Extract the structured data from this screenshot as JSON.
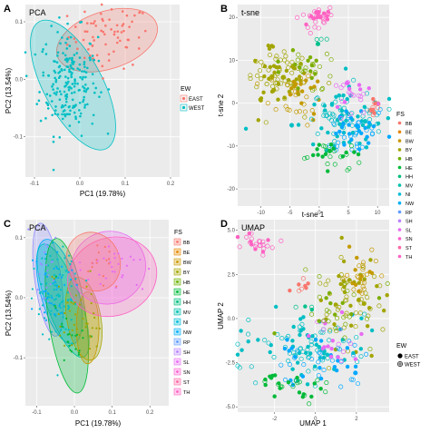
{
  "figure_title": "",
  "chart_data": [
    {
      "panel": "A",
      "type": "scatter",
      "title": "PCA",
      "xlabel": "PC1 (19.78%)",
      "ylabel": "PC2 (13.54%)",
      "xlim": [
        -0.12,
        0.22
      ],
      "ylim": [
        -0.17,
        0.13
      ],
      "xticks": [
        -0.1,
        0.0,
        0.1,
        0.2
      ],
      "yticks": [
        -0.1,
        0.0,
        0.1
      ],
      "xtick_labels": [
        "-0.1",
        "0.0",
        "0.1",
        "0.2"
      ],
      "ytick_labels": [
        "-0.1",
        "0.0",
        "0.1"
      ],
      "grid": true,
      "background": "#ebebeb",
      "legend": {
        "title": "EW",
        "position": "right",
        "entries": [
          "EAST",
          "WEST"
        ]
      },
      "series": [
        {
          "name": "EAST",
          "color": "#f8766d",
          "cluster": {
            "cx": 0.065,
            "cy": 0.075,
            "sx": 0.045,
            "sy": 0.028,
            "n": 70
          },
          "ellipse": {
            "cx": 0.06,
            "cy": 0.068,
            "rx": 0.115,
            "ry": 0.05,
            "angle": -18
          }
        },
        {
          "name": "WEST",
          "color": "#00bfc4",
          "cluster": {
            "cx": -0.025,
            "cy": -0.005,
            "sx": 0.032,
            "sy": 0.045,
            "n": 210
          },
          "ellipse": {
            "cx": -0.015,
            "cy": -0.01,
            "rx": 0.065,
            "ry": 0.125,
            "angle": -28
          }
        }
      ]
    },
    {
      "panel": "B",
      "type": "scatter",
      "title": "t-sne",
      "xlabel": "t-sne 1",
      "ylabel": "t-sne 2",
      "xlim": [
        -14,
        12
      ],
      "ylim": [
        -24,
        23
      ],
      "xticks": [
        -10,
        -5,
        0,
        5,
        10
      ],
      "yticks": [
        -20,
        -10,
        0,
        10,
        20
      ],
      "xtick_labels": [
        "-10",
        "-5",
        "0",
        "5",
        "10"
      ],
      "ytick_labels": [
        "-20",
        "-10",
        "0",
        "10",
        "20"
      ],
      "grid": true,
      "background": "#ebebeb",
      "legend": {
        "title": "FS",
        "position": "right",
        "entries": [
          "BB",
          "BE",
          "BW",
          "BY",
          "HB",
          "HE",
          "HH",
          "MV",
          "NI",
          "NW",
          "RP",
          "SH",
          "SL",
          "SN",
          "ST",
          "TH"
        ]
      },
      "clusters": [
        {
          "color": "#ff61c3",
          "cx": -1.0,
          "cy": 20.0,
          "sx": 1.3,
          "sy": 1.4,
          "n": 35
        },
        {
          "color": "#a3a500",
          "cx": -7.5,
          "cy": 6.0,
          "sx": 2.8,
          "sy": 3.5,
          "n": 90
        },
        {
          "color": "#c49a00",
          "cx": -3.5,
          "cy": 1.5,
          "sx": 2.5,
          "sy": 3.0,
          "n": 40
        },
        {
          "color": "#00bfc4",
          "cx": 3.5,
          "cy": -3.0,
          "sx": 4.0,
          "sy": 3.5,
          "n": 100
        },
        {
          "color": "#00a9ff",
          "cx": 6.0,
          "cy": -7.0,
          "sx": 2.5,
          "sy": 3.0,
          "n": 50
        },
        {
          "color": "#00ba38",
          "cx": 1.5,
          "cy": -11.5,
          "sx": 2.5,
          "sy": 1.5,
          "n": 30
        },
        {
          "color": "#e76bf3",
          "cx": 6.0,
          "cy": 2.5,
          "sx": 2.0,
          "sy": 1.8,
          "n": 25
        },
        {
          "color": "#f8766d",
          "cx": 9.5,
          "cy": -1.5,
          "sx": 0.8,
          "sy": 1.2,
          "n": 12
        },
        {
          "color": "#7cae00",
          "cx": -2.5,
          "cy": 8.0,
          "sx": 2.5,
          "sy": 2.5,
          "n": 30
        },
        {
          "color": "#00c08b",
          "cx": 0.5,
          "cy": 14.5,
          "sx": 0.6,
          "sy": 0.5,
          "n": 5
        }
      ]
    },
    {
      "panel": "C",
      "type": "scatter",
      "title": "PCA",
      "xlabel": "PC1 (19.78%)",
      "ylabel": "PC2 (13.54%)",
      "xlim": [
        -0.13,
        0.25
      ],
      "ylim": [
        -0.18,
        0.13
      ],
      "xticks": [
        -0.1,
        0.0,
        0.1,
        0.2
      ],
      "yticks": [
        -0.1,
        0.0,
        0.1
      ],
      "xtick_labels": [
        "-0.1",
        "0.0",
        "0.1",
        "0.2"
      ],
      "ytick_labels": [
        "-0.1",
        "0.0",
        "0.1"
      ],
      "grid": true,
      "background": "#ebebeb",
      "legend": {
        "title": "FS",
        "position": "right",
        "entries": [
          "BB",
          "BE",
          "BW",
          "BY",
          "HB",
          "HE",
          "HH",
          "MV",
          "NI",
          "NW",
          "RP",
          "SH",
          "SL",
          "SN",
          "ST",
          "TH"
        ]
      },
      "ellipses": [
        {
          "color": "#9590ff",
          "cx": -0.07,
          "cy": 0.03,
          "rx": 0.035,
          "ry": 0.095,
          "angle": -8
        },
        {
          "color": "#00a9ff",
          "cx": -0.04,
          "cy": 0.01,
          "rx": 0.05,
          "ry": 0.09,
          "angle": -15
        },
        {
          "color": "#00bfc4",
          "cx": -0.03,
          "cy": -0.005,
          "rx": 0.045,
          "ry": 0.1,
          "angle": -20
        },
        {
          "color": "#00ba38",
          "cx": -0.02,
          "cy": -0.03,
          "rx": 0.05,
          "ry": 0.13,
          "angle": -8
        },
        {
          "color": "#a3a500",
          "cx": 0.025,
          "cy": -0.035,
          "rx": 0.045,
          "ry": 0.07,
          "angle": -10
        },
        {
          "color": "#c49a00",
          "cx": 0.035,
          "cy": -0.05,
          "rx": 0.03,
          "ry": 0.06,
          "angle": 0
        },
        {
          "color": "#e76bf3",
          "cx": 0.09,
          "cy": 0.05,
          "rx": 0.1,
          "ry": 0.06,
          "angle": -30
        },
        {
          "color": "#ff61c3",
          "cx": 0.1,
          "cy": 0.035,
          "rx": 0.12,
          "ry": 0.065,
          "angle": -20
        },
        {
          "color": "#f8766d",
          "cx": 0.05,
          "cy": 0.06,
          "rx": 0.07,
          "ry": 0.05,
          "angle": -25
        }
      ],
      "clusters": [
        {
          "color": "#00bfc4",
          "cx": -0.04,
          "cy": 0.0,
          "sx": 0.03,
          "sy": 0.04,
          "n": 90
        },
        {
          "color": "#00a9ff",
          "cx": -0.05,
          "cy": 0.02,
          "sx": 0.025,
          "sy": 0.035,
          "n": 40
        },
        {
          "color": "#00ba38",
          "cx": -0.01,
          "cy": -0.07,
          "sx": 0.025,
          "sy": 0.03,
          "n": 25
        },
        {
          "color": "#a3a500",
          "cx": 0.01,
          "cy": -0.03,
          "sx": 0.03,
          "sy": 0.03,
          "n": 40
        },
        {
          "color": "#e76bf3",
          "cx": 0.09,
          "cy": 0.05,
          "sx": 0.045,
          "sy": 0.025,
          "n": 30
        },
        {
          "color": "#f8766d",
          "cx": 0.06,
          "cy": 0.06,
          "sx": 0.03,
          "sy": 0.02,
          "n": 15
        },
        {
          "color": "#9590ff",
          "cx": -0.08,
          "cy": 0.04,
          "sx": 0.02,
          "sy": 0.03,
          "n": 20
        }
      ]
    },
    {
      "panel": "D",
      "type": "scatter",
      "title": "UMAP",
      "xlabel": "UMAP 1",
      "ylabel": "UMAP 2",
      "xlim": [
        -3.8,
        3.6
      ],
      "ylim": [
        -5.3,
        5.6
      ],
      "xticks": [
        -2,
        0,
        2
      ],
      "yticks": [
        -5.0,
        -2.5,
        0.0,
        2.5,
        5.0
      ],
      "xtick_labels": [
        "-2",
        "0",
        "2"
      ],
      "ytick_labels": [
        "-5.0",
        "-2.5",
        "0.0",
        "2.5",
        "5.0"
      ],
      "grid": true,
      "background": "#ebebeb",
      "legend": {
        "title": "EW",
        "position": "right",
        "entries": [
          "EAST",
          "WEST"
        ]
      },
      "clusters": [
        {
          "color": "#ff61c3",
          "cx": -2.8,
          "cy": 4.3,
          "sx": 0.45,
          "sy": 0.35,
          "n": 25
        },
        {
          "color": "#a3a500",
          "cx": 1.8,
          "cy": 1.0,
          "sx": 0.9,
          "sy": 1.3,
          "n": 70
        },
        {
          "color": "#c49a00",
          "cx": 2.2,
          "cy": 2.5,
          "sx": 0.5,
          "sy": 0.7,
          "n": 30
        },
        {
          "color": "#00bfc4",
          "cx": -0.3,
          "cy": -1.5,
          "sx": 1.4,
          "sy": 0.9,
          "n": 100
        },
        {
          "color": "#00a9ff",
          "cx": 0.2,
          "cy": -2.5,
          "sx": 1.2,
          "sy": 0.8,
          "n": 50
        },
        {
          "color": "#00ba38",
          "cx": -0.8,
          "cy": -3.9,
          "sx": 0.9,
          "sy": 0.35,
          "n": 30
        },
        {
          "color": "#e76bf3",
          "cx": 1.0,
          "cy": -1.0,
          "sx": 0.8,
          "sy": 0.8,
          "n": 20
        },
        {
          "color": "#f8766d",
          "cx": -0.8,
          "cy": 1.6,
          "sx": 0.3,
          "sy": 0.3,
          "n": 8
        },
        {
          "color": "#7cae00",
          "cx": 1.0,
          "cy": 0.2,
          "sx": 1.0,
          "sy": 0.9,
          "n": 30
        },
        {
          "color": "#00c08b",
          "cx": -0.6,
          "cy": 0.7,
          "sx": 0.2,
          "sy": 0.2,
          "n": 4
        }
      ]
    }
  ],
  "fs_legend_colors": {
    "BB": "#f8766d",
    "BE": "#e58700",
    "BW": "#c99800",
    "BY": "#a3a500",
    "HB": "#6bb100",
    "HE": "#00ba38",
    "HH": "#00bf7d",
    "MV": "#00c0af",
    "NI": "#00bcd8",
    "NW": "#00b0f6",
    "RP": "#619cff",
    "SH": "#b983ff",
    "SL": "#e76bf3",
    "SN": "#fd61d1",
    "ST": "#ff67a4",
    "TH": "#ff61c3"
  },
  "ew_legend_colors": {
    "EAST": "#f8766d",
    "WEST": "#00bfc4"
  },
  "ew_shape_legend": {
    "title": "EW",
    "entries": [
      "EAST",
      "WEST"
    ]
  }
}
